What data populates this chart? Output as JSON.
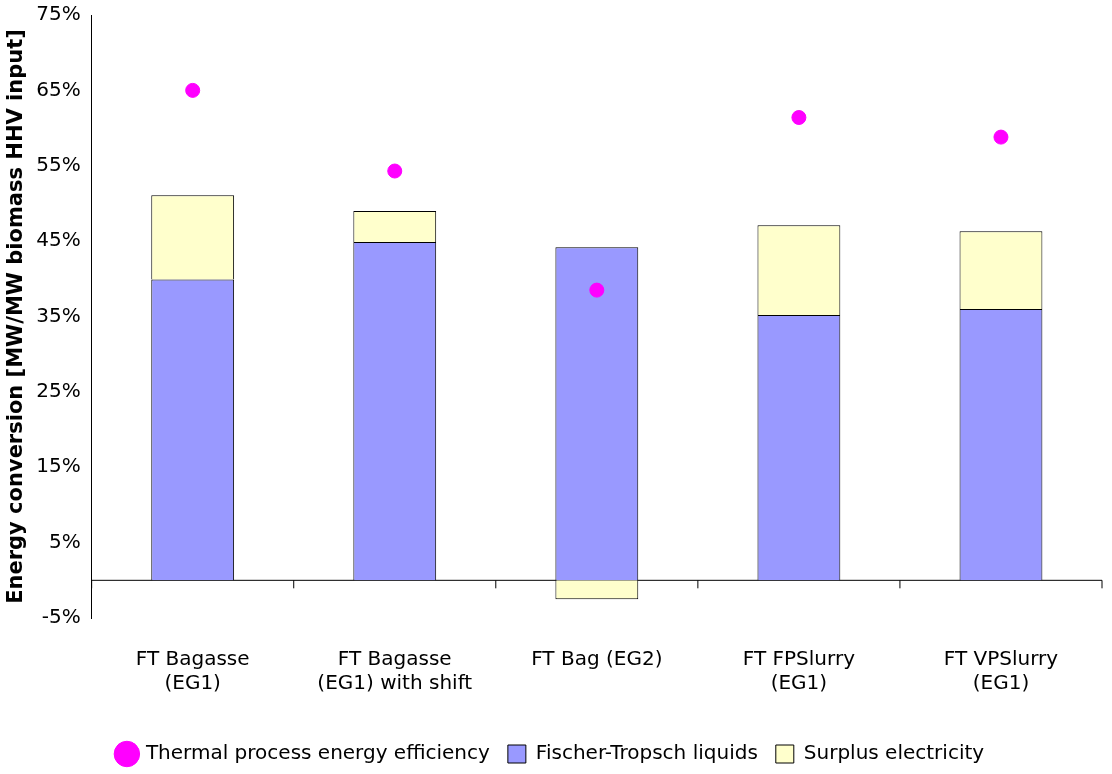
{
  "chart_data": {
    "type": "bar",
    "stacked": true,
    "ylabel": "Energy conversion [MW/MW biomass HHV input]",
    "categories": [
      "FT Bagasse (EG1)",
      "FT Bagasse (EG1) with shift",
      "FT Bag (EG2)",
      "FT FPSlurry (EG1)",
      "FT VPSlurry (EG1)"
    ],
    "series": [
      {
        "name": "Fischer-Tropsch liquids",
        "color": "#9999ff",
        "values": [
          39.9,
          44.9,
          44.2,
          35.2,
          36.0
        ]
      },
      {
        "name": "Surplus electricity",
        "color": "#ffffcc",
        "values": [
          11.2,
          4.1,
          -2.5,
          11.9,
          10.3
        ]
      },
      {
        "name": "Thermal process energy efficiency",
        "type": "scatter",
        "color": "#ff00ff",
        "marker": "circle",
        "x": [
          "FT Bagasse (EG1)",
          "FT Bagasse (EG1) with shift",
          "FT Bag (EG2)",
          "FT FPSlurry (EG1)",
          "FT VPSlurry (EG1)"
        ],
        "values": [
          65.0,
          54.3,
          38.5,
          61.4,
          58.8
        ]
      }
    ],
    "ylim": [
      -5,
      75
    ],
    "yticks": [
      {
        "value": -5,
        "label": "-5%"
      },
      {
        "value": 5,
        "label": "5%"
      },
      {
        "value": 15,
        "label": "15%"
      },
      {
        "value": 25,
        "label": "25%"
      },
      {
        "value": 35,
        "label": "35%"
      },
      {
        "value": 45,
        "label": "45%"
      },
      {
        "value": 55,
        "label": "55%"
      },
      {
        "value": 65,
        "label": "65%"
      },
      {
        "value": 75,
        "label": "75%"
      }
    ],
    "grid": false,
    "legend": "bottom"
  }
}
